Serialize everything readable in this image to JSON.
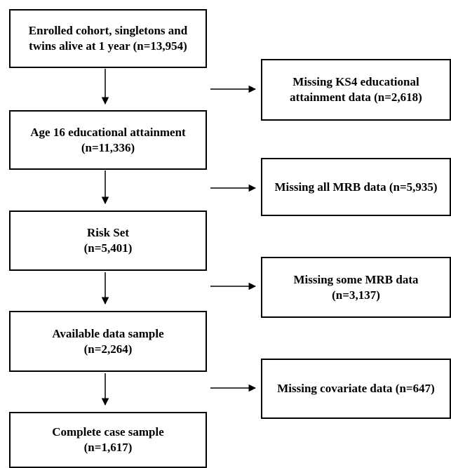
{
  "main_steps": [
    {
      "line1": "Enrolled cohort, singletons and",
      "line2": "twins alive at 1 year (n=13,954)"
    },
    {
      "line1": "Age 16 educational attainment",
      "line2": "(n=11,336)"
    },
    {
      "line1": "Risk Set",
      "line2": "(n=5,401)"
    },
    {
      "line1": "Available data sample",
      "line2": "(n=2,264)"
    },
    {
      "line1": "Complete case sample",
      "line2": "(n=1,617)"
    }
  ],
  "exclusions": [
    {
      "line1": "Missing KS4 educational",
      "line2": "attainment data (n=2,618)"
    },
    {
      "line1": "Missing all MRB data (n=5,935)",
      "line2": ""
    },
    {
      "line1": "Missing some MRB data",
      "line2": "(n=3,137)"
    },
    {
      "line1": "Missing covariate data (n=647)",
      "line2": ""
    }
  ],
  "colors": {
    "border": "#000000",
    "text": "#000000",
    "background": "#ffffff"
  }
}
